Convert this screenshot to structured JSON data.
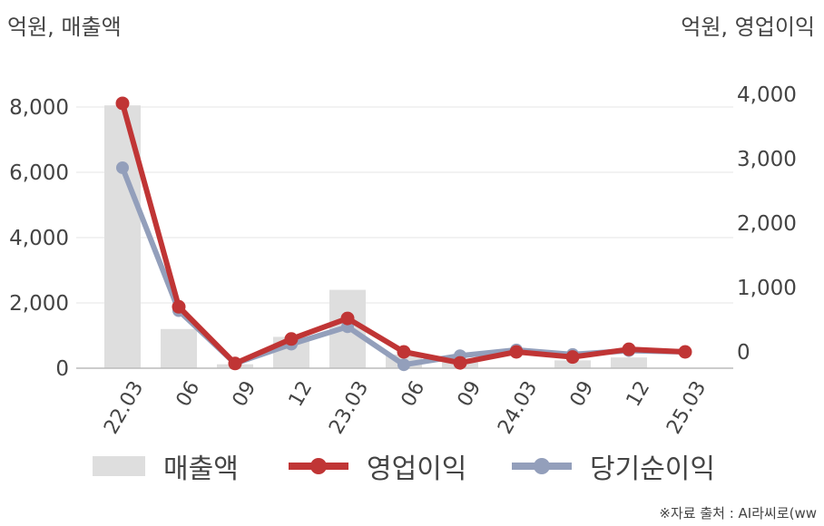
{
  "units": {
    "left": "억원, 매출액",
    "right": "억원, 영업이익"
  },
  "source": "※자료 출처 : AI라씨로(ww",
  "colors": {
    "revenue": "#dedede",
    "operating_profit": "#c03535",
    "net_income": "#939fbb",
    "grid": "#e6e6e6",
    "axis": "#bbbbbb"
  },
  "chart_data": {
    "type": "bar+line",
    "categories": [
      "22.03",
      "06",
      "09",
      "12",
      "23.03",
      "06",
      "09",
      "24.03",
      "09",
      "12",
      "25.03"
    ],
    "y_left": {
      "min": 0,
      "max": 8000,
      "ticks": [
        "0",
        "2,000",
        "4,000",
        "6,000",
        "8,000"
      ]
    },
    "y_right": {
      "min": -250,
      "max": 4000,
      "ticks": [
        "0",
        "1,000",
        "2,000",
        "3,000",
        "4,000"
      ]
    },
    "grid": true,
    "legend_position": "bottom",
    "series": [
      {
        "name": "매출액",
        "type": "bar",
        "axis": "left",
        "values": [
          8050,
          1200,
          120,
          960,
          2400,
          420,
          180,
          null,
          240,
          330,
          0
        ]
      },
      {
        "name": "영업이익",
        "type": "line",
        "axis": "right",
        "values": [
          3860,
          700,
          -180,
          200,
          520,
          0,
          -170,
          0,
          -80,
          40,
          0
        ]
      },
      {
        "name": "당기순이익",
        "type": "line",
        "axis": "right",
        "values": [
          2860,
          640,
          -180,
          120,
          390,
          -200,
          -60,
          30,
          -40,
          20,
          0
        ]
      }
    ]
  }
}
